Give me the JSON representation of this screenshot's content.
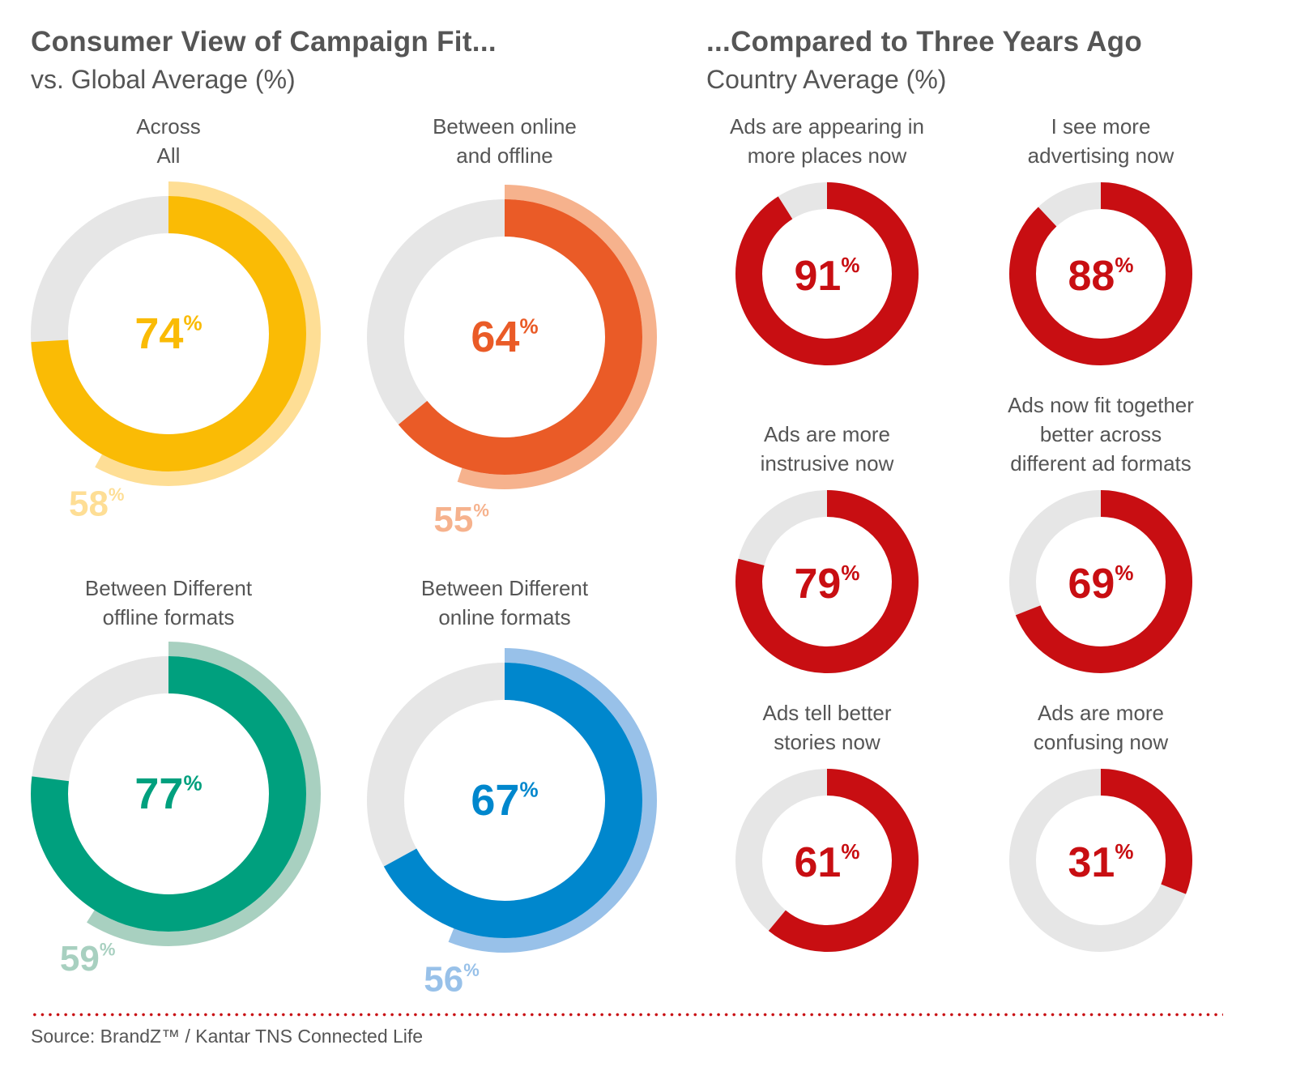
{
  "left": {
    "title": "Consumer View of Campaign Fit...",
    "subtitle": "vs. Global Average (%)"
  },
  "right": {
    "title": "...Compared to Three Years Ago",
    "subtitle": "Country Average (%)"
  },
  "source": "Source: BrandZ™ / Kantar TNS Connected Life",
  "colors": {
    "track": "#e6e6e6",
    "red": "#c80e12"
  },
  "chart_data": [
    {
      "type": "donut",
      "title": "Consumer View of Campaign Fit... vs. Global Average (%)",
      "series": [
        {
          "label": "Across\nAll",
          "value": 74,
          "global": 58,
          "color": "#fabb05",
          "light": "#fede95"
        },
        {
          "label": "Between online\nand offline",
          "value": 64,
          "global": 55,
          "color": "#ea5b27",
          "light": "#f6b28d"
        },
        {
          "label": "Between Different\noffline formats",
          "value": 77,
          "global": 59,
          "color": "#00a07e",
          "light": "#a8d0c0"
        },
        {
          "label": "Between Different\nonline formats",
          "value": 67,
          "global": 56,
          "color": "#0087cd",
          "light": "#98c1e9"
        }
      ]
    },
    {
      "type": "donut",
      "title": "...Compared to Three Years Ago — Country Average (%)",
      "series": [
        {
          "label": "Ads are appearing in\nmore places now",
          "value": 91
        },
        {
          "label": "I see more\nadvertising now",
          "value": 88
        },
        {
          "label": "Ads are more\ninstrusive now",
          "value": 79
        },
        {
          "label": "Ads now fit together\nbetter across\ndifferent ad formats",
          "value": 69
        },
        {
          "label": "Ads tell better\nstories now",
          "value": 61
        },
        {
          "label": "Ads are more\nconfusing now",
          "value": 31
        }
      ]
    }
  ]
}
